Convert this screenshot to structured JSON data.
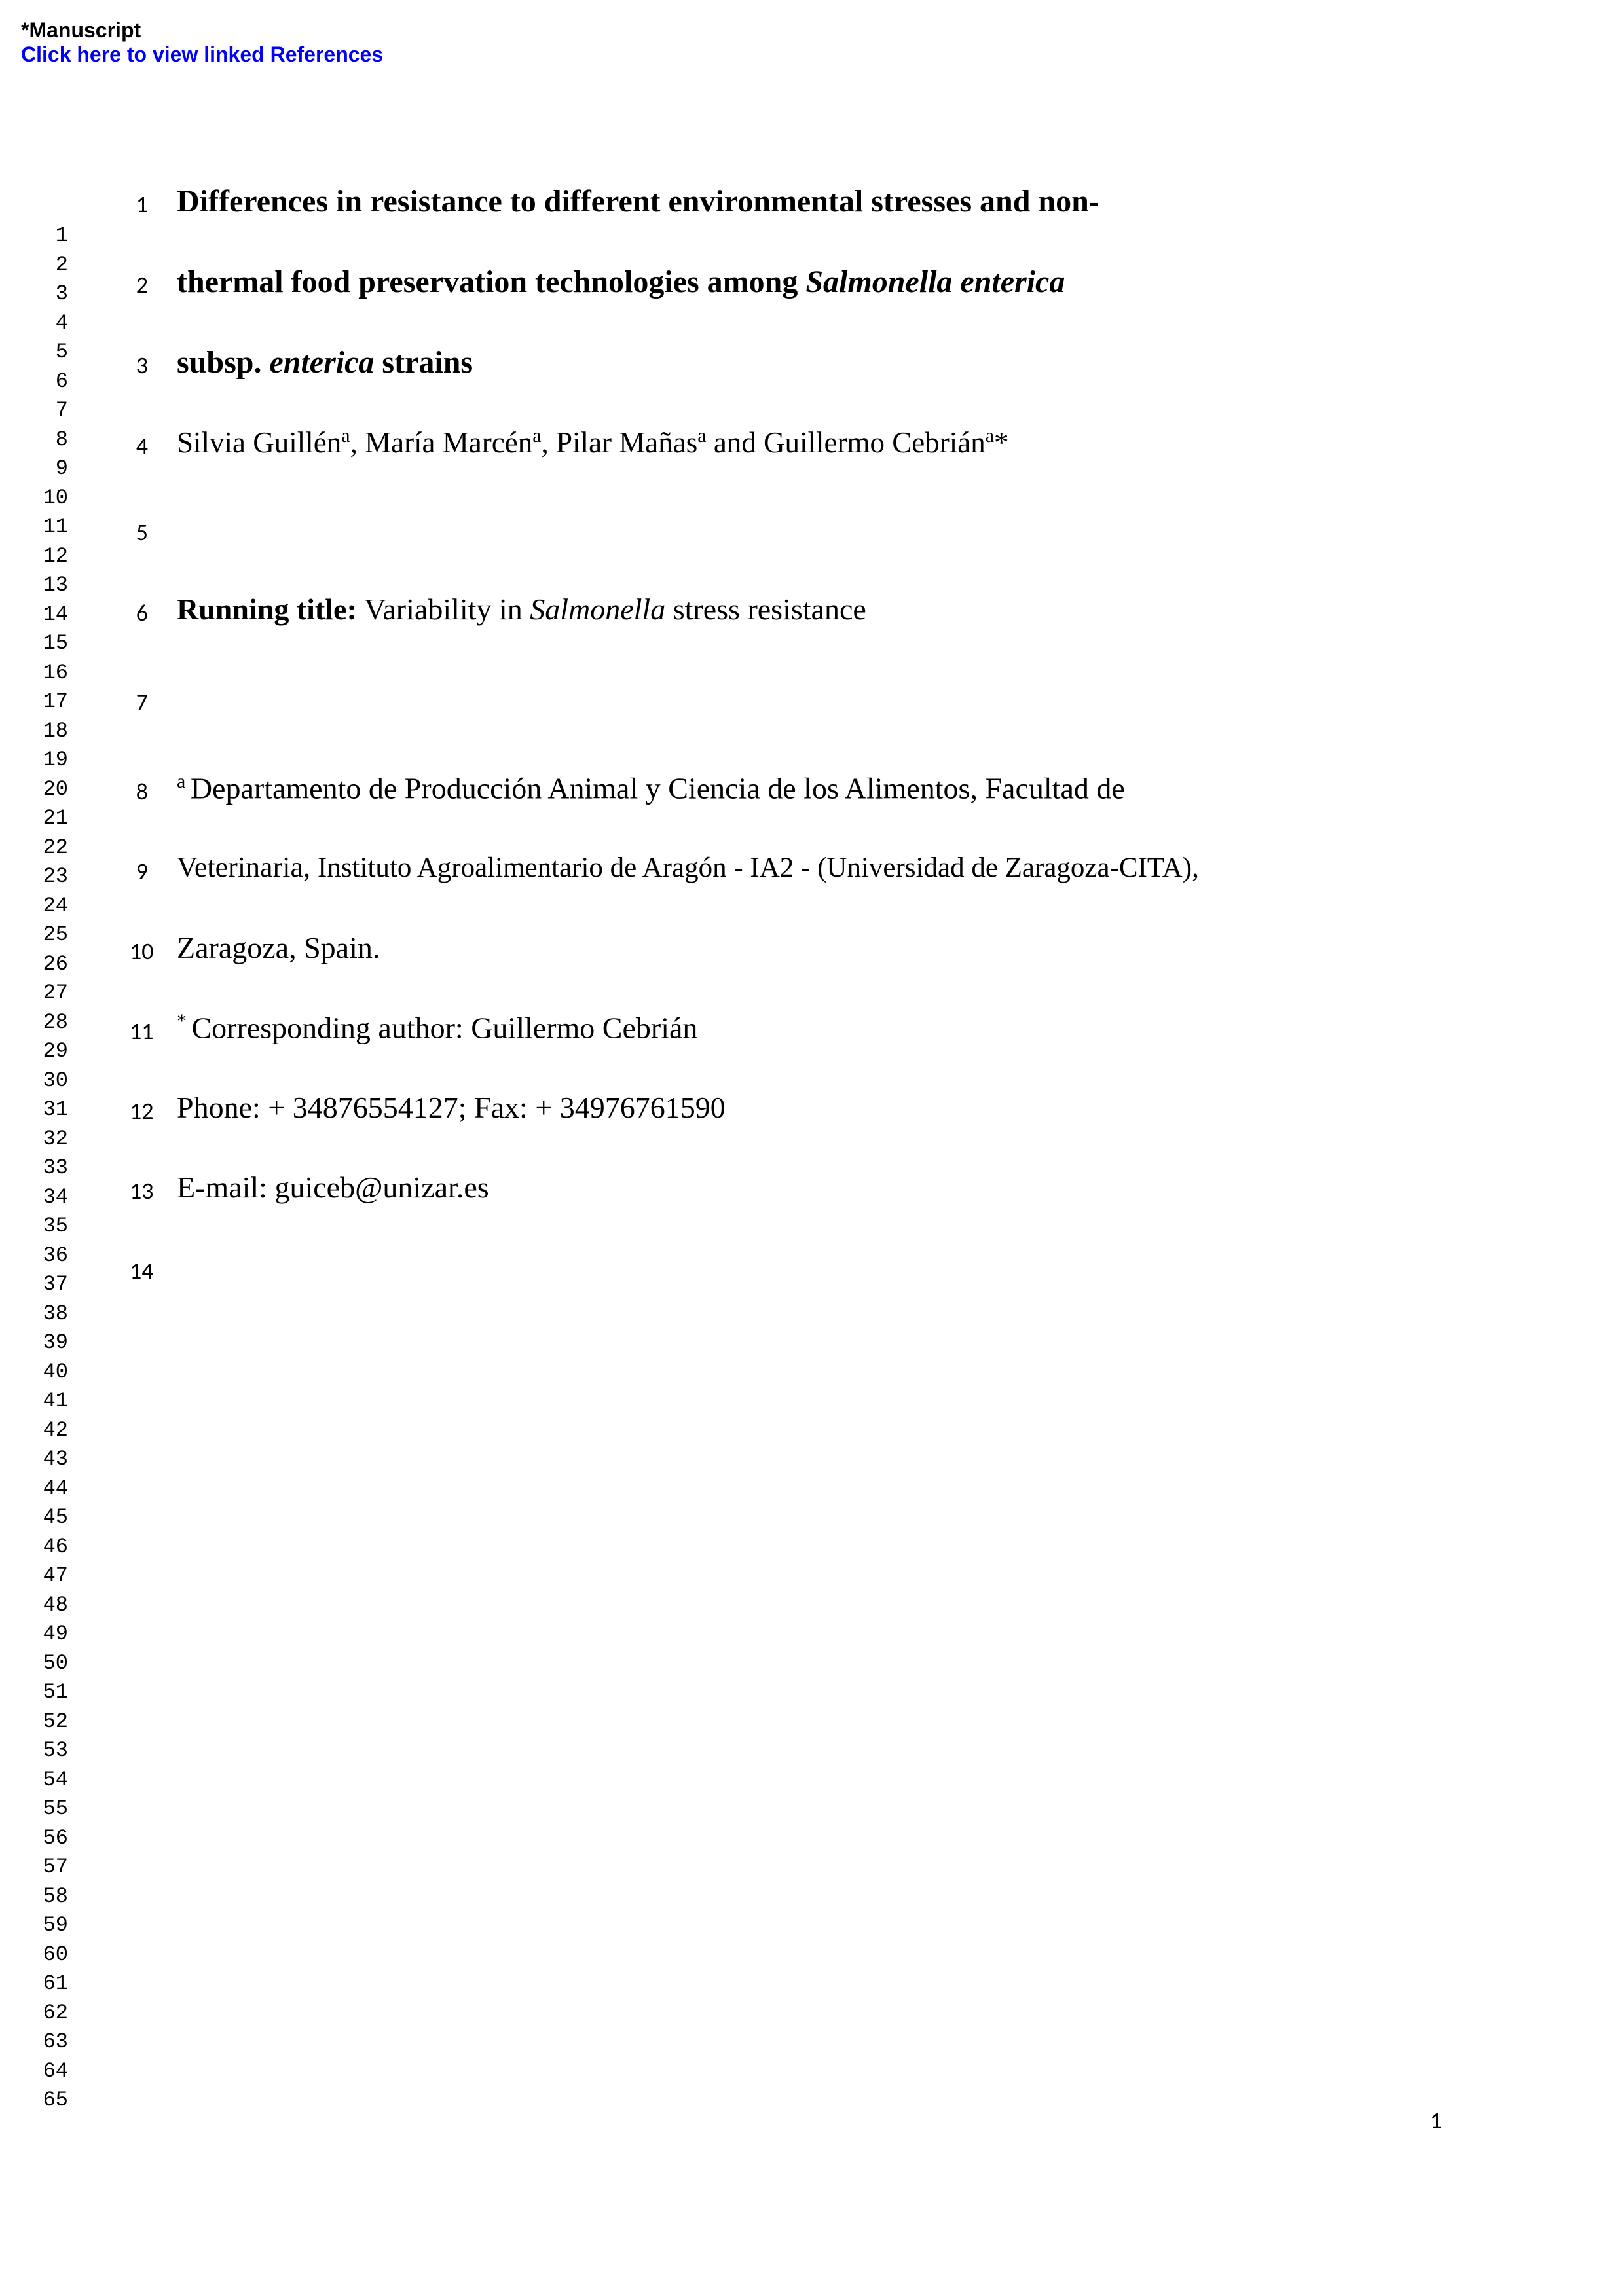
{
  "header": {
    "manuscript_label": "*Manuscript",
    "references_link": "Click here to view linked References"
  },
  "left_line_numbers": {
    "start": 1,
    "end": 65
  },
  "content": {
    "title_line1": "Differences in resistance to different environmental stresses and non-",
    "title_line2_prefix": "thermal food preservation technologies among ",
    "title_line2_italic": "Salmonella enterica",
    "title_line3_prefix": "subsp. ",
    "title_line3_italic": "enterica",
    "title_line3_suffix": " strains",
    "authors_prefix": "Silvia Guillén",
    "authors_sup1": "a",
    "authors_mid1": ", María Marcén",
    "authors_sup2": "a",
    "authors_mid2": ", Pilar Mañas",
    "authors_sup3": "a",
    "authors_mid3": " and Guillermo Cebrián",
    "authors_sup4": "a",
    "authors_asterisk": "*",
    "running_title_label": "Running title: ",
    "running_title_prefix": "Variability in ",
    "running_title_italic": "Salmonella",
    "running_title_suffix": " stress resistance",
    "affiliation_sup": "a ",
    "affiliation_line1": "Departamento de Producción Animal y Ciencia de los Alimentos, Facultad de",
    "affiliation_line2": "Veterinaria, Instituto Agroalimentario de Aragón - IA2 - (Universidad de Zaragoza-CITA),",
    "affiliation_line3": "Zaragoza, Spain.",
    "corresponding_sup": "* ",
    "corresponding_text": "Corresponding author: Guillermo Cebrián",
    "phone_text": "Phone: + 34876554127; Fax: + 34976761590",
    "email_text": "E-mail: guiceb@unizar.es"
  },
  "content_line_numbers": [
    "1",
    "2",
    "3",
    "4",
    "5",
    "6",
    "7",
    "8",
    "9",
    "10",
    "11",
    "12",
    "13",
    "14"
  ],
  "page_number": "1",
  "colors": {
    "background": "#ffffff",
    "text": "#000000",
    "link": "#0000ff"
  }
}
